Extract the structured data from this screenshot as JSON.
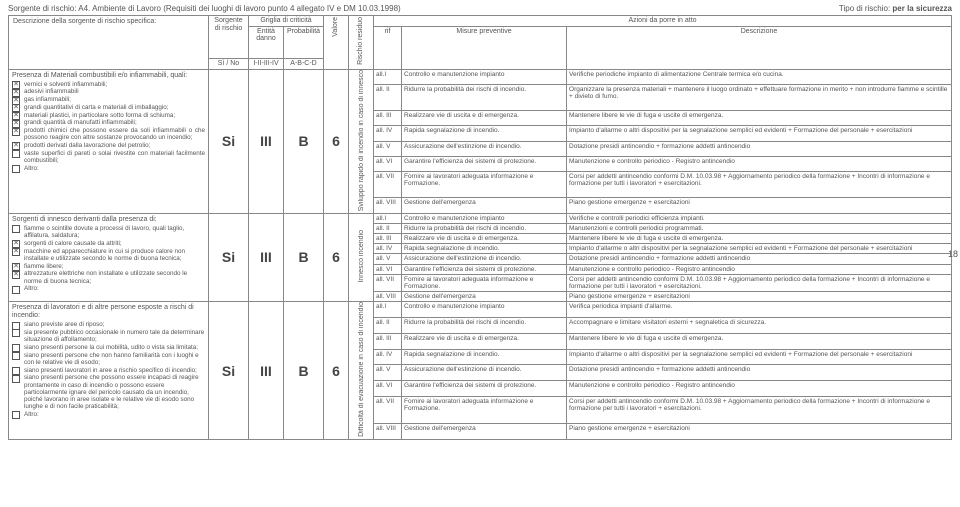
{
  "header": {
    "source_label": "Sorgente di rischio:",
    "source_code": "A4.",
    "source_text": "Ambiente di Lavoro (Requisiti dei luoghi di lavoro punto 4 allegato IV e DM 10.03.1998)",
    "type_label": "Tipo di rischio:",
    "type_text": "per la sicurezza"
  },
  "columns": {
    "desc": "Descrizione della sorgente di rischio specifica:",
    "src": "Sorgente di rischio",
    "src_sub": "Sì / No",
    "grid": "Griglia di criticità",
    "ent": "Entità danno",
    "ent_sub": "I-II-III-IV",
    "prob": "Probabilità",
    "prob_sub": "A-B-C-D",
    "val": "Valore",
    "risk": "Rischio residuo",
    "rif": "rif",
    "mis": "Misure preventive",
    "az": "Azioni da porre in atto",
    "azdesc": "Descrizione"
  },
  "rows": [
    {
      "title": "Presenza di Materiali combustibili e/o infiammabili, quali:",
      "justify": true,
      "items": [
        {
          "t": "vernici e solventi infiammabili;",
          "c": true
        },
        {
          "t": "adesivi infiammabili",
          "c": true
        },
        {
          "t": "gas infiammabili;",
          "c": true
        },
        {
          "t": "grandi quantitativi di carta e materiali di imballaggio;",
          "c": true
        },
        {
          "t": "materiali plastici, in particolare sotto forma di schiuma;",
          "c": true
        },
        {
          "t": "grandi quantità di manufatti infiammabili;",
          "c": true
        },
        {
          "t": "prodotti chimici che possono essere da soli infiammabili o che possono reagire con altre sostanze provocando un incendio;",
          "c": true
        },
        {
          "t": "prodotti derivati dalla lavorazione del petrolio;",
          "c": true
        },
        {
          "t": "vaste superfici di pareti o solai rivestite con materiali facilmente combustibili;",
          "c": false
        },
        {
          "t": "Altro:",
          "c": false
        }
      ],
      "src": "Si",
      "ent": "III",
      "prob": "B",
      "val": "6",
      "risk_label": "Sviluppo rapido di incendio in caso di innesco",
      "measures": [
        {
          "rif": "all.I",
          "mis": "Controllo e manutenzione impianto",
          "az": "Verifiche periodiche impianto di alimentazione Centrale termica e/o cucina."
        },
        {
          "rif": "all. II",
          "mis": "Ridurre la probabilità dei rischi di incendio.",
          "az": "Organizzare la presenza materiali + mantenere il luogo ordinato + effettuare formazione in merito + non introdurre fiamme e scintille + divieto di fumo."
        },
        {
          "rif": "all. III",
          "mis": "Realizzare vie di uscita e di emergenza.",
          "az": "Mantenere libere le vie di fuga e uscite di emergenza."
        },
        {
          "rif": "all. IV",
          "mis": "Rapida segnalazione di incendio.",
          "az": "Impianto d'allarme o altri dispositivi per la segnalazione semplici ed evidenti + Formazione del personale + esercitazioni"
        },
        {
          "rif": "all. V",
          "mis": "Assicurazione dell'estinzione di incendio.",
          "az": "Dotazione presidi antincendio + formazione addetti antincendio"
        },
        {
          "rif": "all. VI",
          "mis": "Garantire l'efficienza dei sistemi di protezione.",
          "az": "Manutenzione e controllo periodico - Registro antincendio"
        },
        {
          "rif": "all. VII",
          "mis": "Fornire ai lavoratori adeguata informazione e Formazione.",
          "az": "Corsi per addetti antincendio conformi D.M. 10.03.98  + Aggiornamento periodico della formazione + Incontri di informazione e formazione per tutti i lavoratori + esercitazioni."
        },
        {
          "rif": "all. VIII",
          "mis": "Gestione dell'emergenza",
          "az": "Piano gestione emergenze + esercitazioni"
        }
      ]
    },
    {
      "title": "Sorgenti di innesco derivanti dalla presenza di:",
      "items": [
        {
          "t": "fiamme o scintille dovute a processi di lavoro, quali taglio, affilatura, saldatura;",
          "c": false
        },
        {
          "t": "sorgenti di calore causate da attriti;",
          "c": true
        },
        {
          "t": "macchine ed apparecchiature in cui si produce calore non installate e utilizzate secondo le norme di buona tecnica;",
          "c": true
        },
        {
          "t": "fiamme libere;",
          "c": true
        },
        {
          "t": "attrezzature elettriche non installate e utilizzate secondo le norme di buona tecnica;",
          "c": true
        },
        {
          "t": "Altro:",
          "c": false
        }
      ],
      "src": "Si",
      "ent": "III",
      "prob": "B",
      "val": "6",
      "risk_label": "Innesco incendio",
      "measures": [
        {
          "rif": "all.I",
          "mis": "Controllo e manutenzione impianto",
          "az": "Verifiche e controlli periodici efficienza impianti."
        },
        {
          "rif": "all. II",
          "mis": "Ridurre la probabilità dei rischi di incendio.",
          "az": "Manutenzioni e controlli periodici programmati."
        },
        {
          "rif": "all. III",
          "mis": "Realizzare vie di uscita e di emergenza.",
          "az": "Mantenere libere le vie di fuga e uscite di emergenza."
        },
        {
          "rif": "all. IV",
          "mis": "Rapida segnalazione di incendio.",
          "az": "Impianto d'allarme o altri dispositivi per la segnalazione semplici ed evidenti + Formazione del personale + esercitazioni"
        },
        {
          "rif": "all. V",
          "mis": "Assicurazione dell'estinzione di incendio.",
          "az": "Dotazione presidi antincendio + formazione addetti antincendio"
        },
        {
          "rif": "all. VI",
          "mis": "Garantire l'efficienza dei sistemi di protezione.",
          "az": "Manutenzione e controllo periodico - Registro antincendio"
        },
        {
          "rif": "all. VII",
          "mis": "Fornire ai lavoratori adeguata informazione e Formazione.",
          "az": "Corsi per addetti antincendio conformi D.M. 10.03.98  + Aggiornamento periodico della formazione + Incontri di informazione e formazione per tutti i lavoratori + esercitazioni."
        },
        {
          "rif": "all. VIII",
          "mis": "Gestione dell'emergenza",
          "az": "Piano gestione emergenze + esercitazioni"
        }
      ]
    },
    {
      "title": "Presenza di lavoratori e di altre persone esposte a rischi di incendio:",
      "items": [
        {
          "t": "siano previste aree di riposo;",
          "c": false
        },
        {
          "t": "sia presente pubblico occasionale in numero tale da determinare situazione di affollamento;",
          "c": false
        },
        {
          "t": "siano presenti persone la cui mobilità, udito o vista sia limitata;",
          "c": false
        },
        {
          "t": "siano presenti persone che non hanno familiarità con i luoghi e con le relative vie di esodo;",
          "c": false
        },
        {
          "t": "siano presenti lavoratori in aree a rischio specifico di incendio;",
          "c": false
        },
        {
          "t": "siano presenti persone che possono essere incapaci di reagire prontamente in caso di incendio o possono essere particolarmente ignare del pericolo causato da un incendio, poiché lavorano in aree isolate e le relative vie di esodo sono lunghe e di non facile praticabilità;",
          "c": false
        },
        {
          "t": "Altro:",
          "c": false
        }
      ],
      "src": "Si",
      "ent": "III",
      "prob": "B",
      "val": "6",
      "risk_label": "Difficoltà di evacuazione in caso di incendio",
      "measures": [
        {
          "rif": "all.I",
          "mis": "Controllo e manutenzione impianto",
          "az": "Verifica periodica impianti d'allarme."
        },
        {
          "rif": "all. II",
          "mis": "Ridurre la probabilità dei rischi di incendio.",
          "az": "Accompagnare e limitare visitatori esterni + segnaletica di sicurezza."
        },
        {
          "rif": "all. III",
          "mis": "Realizzare vie di uscita e di emergenza.",
          "az": "Mantenere libere le vie di fuga e uscite di emergenza."
        },
        {
          "rif": "all. IV",
          "mis": "Rapida segnalazione di incendio.",
          "az": "Impianto d'allarme o altri dispositivi per la segnalazione semplici ed evidenti + Formazione del personale + esercitazioni"
        },
        {
          "rif": "all. V",
          "mis": "Assicurazione dell'estinzione di incendio.",
          "az": "Dotazione presidi antincendio + formazione addetti antincendio"
        },
        {
          "rif": "all. VI",
          "mis": "Garantire l'efficienza dei sistemi di protezione.",
          "az": "Manutenzione e controllo periodico - Registro antincendio"
        },
        {
          "rif": "all. VII",
          "mis": "Fornire ai lavoratori adeguata informazione e Formazione.",
          "az": "Corsi per addetti antincendio conformi D.M. 10.03.98  + Aggiornamento periodico della formazione + Incontri di informazione e formazione per tutti i lavoratori + esercitazioni."
        },
        {
          "rif": "all. VIII",
          "mis": "Gestione dell'emergenza",
          "az": "Piano gestione emergenze + esercitazioni"
        }
      ]
    }
  ],
  "page_number": "18",
  "page_number_inner": "18"
}
